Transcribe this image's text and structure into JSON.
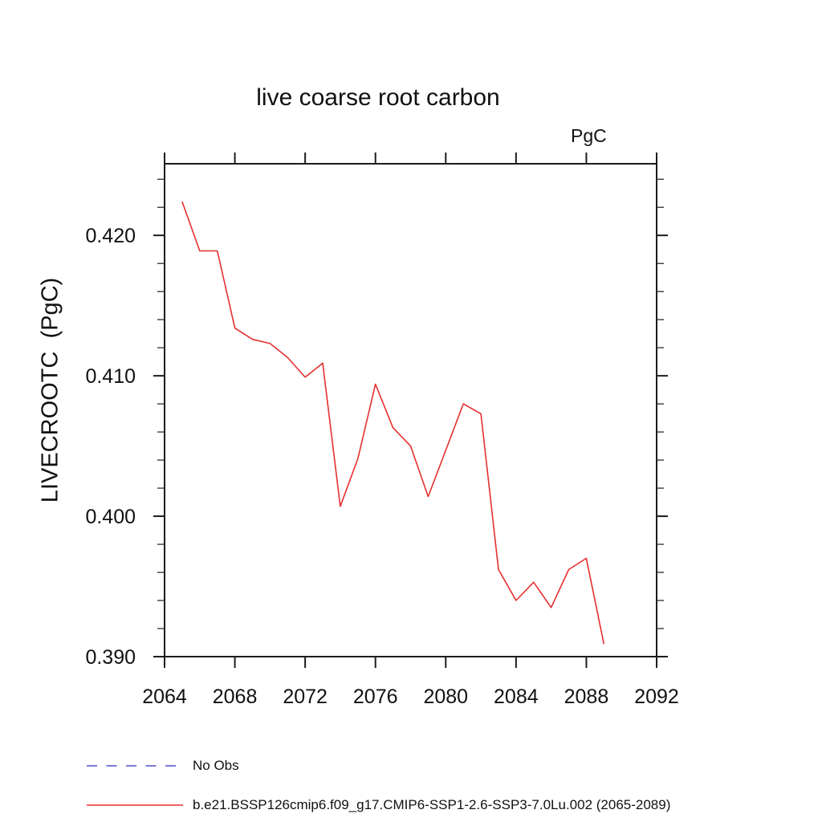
{
  "title": "live coarse root carbon",
  "units_label": "PgC",
  "y_axis_label": "LIVECROOTC  (PgC)",
  "colors": {
    "series_red": "#e62e2e",
    "no_obs_blue": "#7a7ad6",
    "axis": "#1c1c1c",
    "text": "#111111"
  },
  "legend": {
    "items": [
      {
        "label": "No Obs",
        "style": "dashed",
        "color": "#7a7ad6"
      },
      {
        "label": "b.e21.BSSP126cmip6.f09_g17.CMIP6-SSP1-2.6-SSP3-7.0Lu.002 (2065-2089)",
        "style": "solid",
        "color": "#e62e2e"
      }
    ]
  },
  "chart_data": {
    "type": "line",
    "title": "live coarse root carbon",
    "xlabel": "",
    "ylabel": "LIVECROOTC  (PgC)",
    "units": "PgC",
    "grid": false,
    "legend_position": "bottom-left",
    "xlim": [
      2064,
      2092
    ],
    "ylim": [
      0.39,
      0.4251
    ],
    "x_major_ticks": [
      2064,
      2068,
      2072,
      2076,
      2080,
      2084,
      2088,
      2092
    ],
    "x_tick_labels": [
      "2064",
      "2068",
      "2072",
      "2076",
      "2080",
      "2084",
      "2088",
      "2092"
    ],
    "y_major_ticks": [
      0.39,
      0.4,
      0.41,
      0.42
    ],
    "y_tick_labels": [
      "0.390",
      "0.400",
      "0.410",
      "0.420"
    ],
    "y_minor_step": 0.002,
    "x": [
      2065,
      2066,
      2067,
      2068,
      2069,
      2070,
      2071,
      2072,
      2073,
      2074,
      2075,
      2076,
      2077,
      2078,
      2079,
      2080,
      2081,
      2082,
      2083,
      2084,
      2085,
      2086,
      2087,
      2088,
      2089
    ],
    "series": [
      {
        "name": "b.e21.BSSP126cmip6.f09_g17.CMIP6-SSP1-2.6-SSP3-7.0Lu.002 (2065-2089)",
        "color": "#e62e2e",
        "values": [
          0.4224,
          0.4189,
          0.4189,
          0.4134,
          0.4126,
          0.4123,
          0.4113,
          0.4099,
          0.4109,
          0.4007,
          0.4041,
          0.4094,
          0.4063,
          0.405,
          0.4014,
          0.4047,
          0.408,
          0.4073,
          0.3962,
          0.394,
          0.3953,
          0.3935,
          0.3962,
          0.397,
          0.3909
        ]
      }
    ]
  }
}
